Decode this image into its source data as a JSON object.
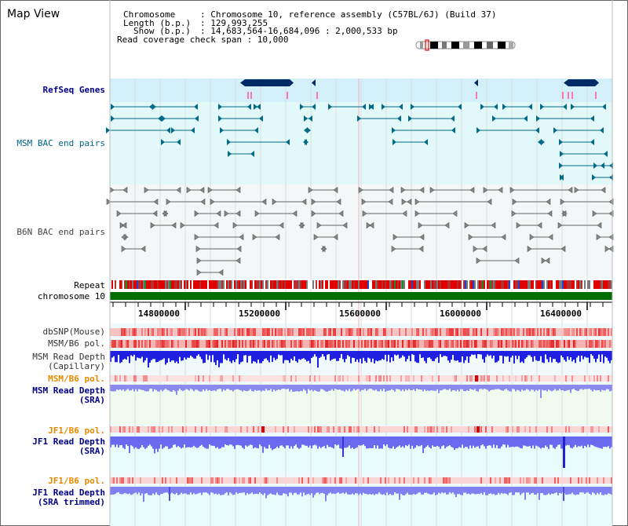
{
  "title": "Map View",
  "info": {
    "chromosome_key": "Chromosome",
    "chromosome_val": ": Chromosome 10, reference assembly (C57BL/6J) (Build 37)",
    "length_key": "Length (b.p.)",
    "length_val": ": 129,993,255",
    "show_key": "Show (b.p.)",
    "show_val": ": 14,683,564-16,684,096 : 2,000,533 bp",
    "coverage": "Read coverage check span : 10,000"
  },
  "tracks": {
    "refseq": "RefSeq Genes",
    "msm_bac": "MSM BAC end pairs",
    "b6n_bac": "B6N BAC end pairs",
    "repeat": "Repeat",
    "chromosome": "chromosome 10",
    "dbsnp": "dbSNP(Mouse)",
    "msm_b6_pol": "MSM/B6 pol.",
    "msm_depth_cap_1": "MSM Read Depth",
    "msm_depth_cap_2": "(Capillary)",
    "msm_b6_pol2": "MSM/B6 pol.",
    "msm_depth_sra_1": "MSM Read Depth",
    "msm_depth_sra_2": "(SRA)",
    "jf1_b6_pol": "JF1/B6 pol.",
    "jf1_depth_sra_1": "JF1 Read Depth",
    "jf1_depth_sra_2": "(SRA)",
    "jf1_b6_pol2": "JF1/B6 pol.",
    "jf1_depth_trim_1": "JF1 Read Depth",
    "jf1_depth_trim_2": "(SRA trimmed)"
  },
  "axis_ticks": [
    "14800000",
    "15200000",
    "15600000",
    "16000000",
    "16400000"
  ],
  "colors": {
    "refseq_band": "#d3f0fa",
    "msm_band": "#e3f8f8",
    "b6n_band": "#f0f4f4",
    "depth_area": "#eafcfc",
    "teal": "#006a8a",
    "navy": "#002a66",
    "pink": "#ff77aa",
    "chrom_green": "#006e00",
    "label_blue": "#000088",
    "label_teal": "#006688",
    "label_orange": "#e68a00"
  }
}
